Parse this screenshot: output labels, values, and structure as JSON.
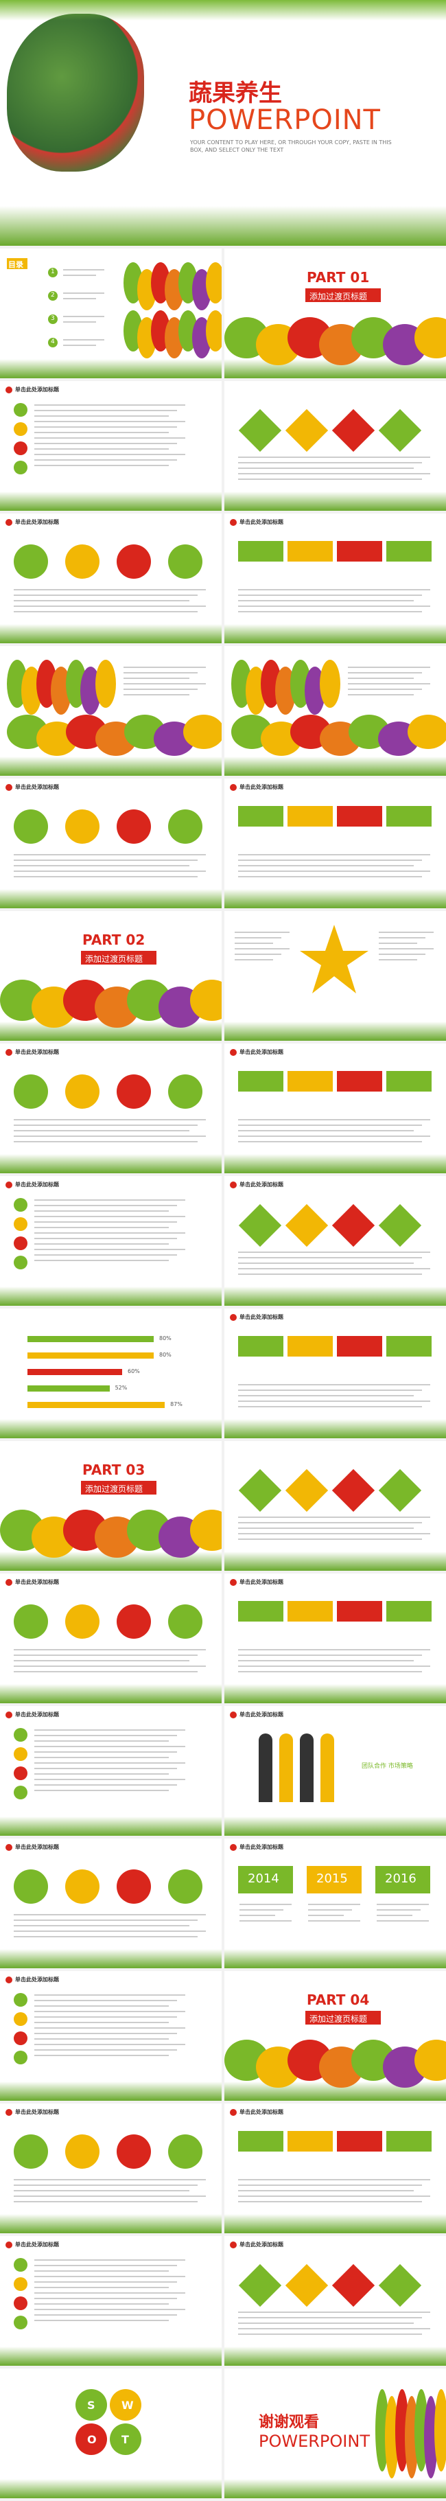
{
  "hero": {
    "title": "蔬果养生",
    "subtitle": "POWERPOINT",
    "text": "YOUR CONTENT TO PLAY HERE, OR THROUGH YOUR COPY, PASTE IN THIS BOX, AND SELECT ONLY THE TEXT"
  },
  "slides": [
    {
      "type": "toc",
      "title": "目录",
      "items": [
        "1",
        "2",
        "3",
        "4"
      ]
    },
    {
      "type": "part",
      "part": "PART 01",
      "title": "添加过渡页标题"
    },
    {
      "type": "content",
      "heading": "单击此处添加标题"
    },
    {
      "type": "timeline"
    },
    {
      "type": "content",
      "heading": "单击此处添加标题"
    },
    {
      "type": "content",
      "heading": "单击此处添加标题"
    },
    {
      "type": "photo"
    },
    {
      "type": "banner"
    },
    {
      "type": "content",
      "heading": "单击此处添加标题"
    },
    {
      "type": "content",
      "heading": "单击此处添加标题"
    },
    {
      "type": "part",
      "part": "PART 02",
      "title": "添加过渡页标题"
    },
    {
      "type": "star"
    },
    {
      "type": "content",
      "heading": "单击此处添加标题"
    },
    {
      "type": "content",
      "heading": "单击此处添加标题"
    },
    {
      "type": "content",
      "heading": "单击此处添加标题"
    },
    {
      "type": "content",
      "heading": "单击此处添加标题"
    },
    {
      "type": "bars",
      "values": [
        80,
        80,
        60,
        52,
        87
      ],
      "value_labels": [
        "80%",
        "80%",
        "60%",
        "52%",
        "87%"
      ]
    },
    {
      "type": "content",
      "heading": "单击此处添加标题"
    },
    {
      "type": "part",
      "part": "PART 03",
      "title": "添加过渡页标题"
    },
    {
      "type": "timeline"
    },
    {
      "type": "content",
      "heading": "单击此处添加标题"
    },
    {
      "type": "content",
      "heading": "单击此处添加标题"
    },
    {
      "type": "content",
      "heading": "单击此处添加标题"
    },
    {
      "type": "team",
      "heading": "单击此处添加标题",
      "label": "团队合作 市场策略"
    },
    {
      "type": "content",
      "heading": "单击此处添加标题"
    },
    {
      "type": "years",
      "heading": "单击此处添加标题",
      "years": [
        "2014",
        "2015",
        "2016"
      ]
    },
    {
      "type": "content",
      "heading": "单击此处添加标题"
    },
    {
      "type": "part",
      "part": "PART 04",
      "title": "添加过渡页标题"
    },
    {
      "type": "content",
      "heading": "单击此处添加标题"
    },
    {
      "type": "content",
      "heading": "单击此处添加标题"
    },
    {
      "type": "content",
      "heading": "单击此处添加标题"
    },
    {
      "type": "content",
      "heading": "单击此处添加标题"
    },
    {
      "type": "swot",
      "letters": [
        "S",
        "W",
        "O",
        "T"
      ]
    },
    {
      "type": "end",
      "title": "谢谢观看",
      "subtitle": "POWERPOINT"
    }
  ]
}
